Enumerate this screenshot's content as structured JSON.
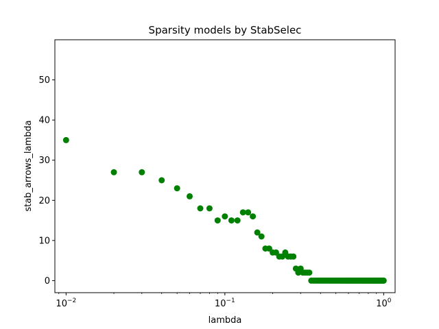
{
  "chart_data": {
    "type": "scatter",
    "title": "Sparsity models by StabSelec",
    "xlabel": "lambda",
    "ylabel": "stab_arrows_lambda",
    "x_scale": "log",
    "xlim": [
      0.0085,
      1.18
    ],
    "ylim": [
      -3,
      60
    ],
    "x_ticks": [
      {
        "value": 0.01,
        "base": "10",
        "exp": "−2"
      },
      {
        "value": 0.1,
        "base": "10",
        "exp": "−1"
      },
      {
        "value": 1,
        "base": "10",
        "exp": "0"
      }
    ],
    "y_ticks": [
      0,
      10,
      20,
      30,
      40,
      50
    ],
    "grid": false,
    "color": "#008000",
    "series": [
      {
        "x": [
          0.01,
          0.02,
          0.03,
          0.04,
          0.05,
          0.06,
          0.07,
          0.08,
          0.09,
          0.1,
          0.11,
          0.12,
          0.13,
          0.14,
          0.15,
          0.16,
          0.17,
          0.18,
          0.19,
          0.2,
          0.21,
          0.22,
          0.23,
          0.24,
          0.25,
          0.26,
          0.27,
          0.28,
          0.29,
          0.3,
          0.31,
          0.32,
          0.33,
          0.34,
          0.35,
          0.36,
          0.37,
          0.38,
          0.39,
          0.4,
          0.41,
          0.42,
          0.43,
          0.44,
          0.45,
          0.46,
          0.47,
          0.48,
          0.49,
          0.5,
          0.51,
          0.52,
          0.53,
          0.54,
          0.55,
          0.56,
          0.57,
          0.58,
          0.59,
          0.6,
          0.61,
          0.62,
          0.63,
          0.64,
          0.65,
          0.66,
          0.67,
          0.68,
          0.69,
          0.7,
          0.71,
          0.72,
          0.73,
          0.74,
          0.75,
          0.76,
          0.77,
          0.78,
          0.79,
          0.8,
          0.81,
          0.82,
          0.83,
          0.84,
          0.85,
          0.86,
          0.87,
          0.88,
          0.89,
          0.9,
          0.91,
          0.92,
          0.93,
          0.94,
          0.95,
          0.96,
          0.97,
          0.98,
          0.99,
          1.0
        ],
        "y": [
          35,
          27,
          27,
          25,
          23,
          21,
          18,
          18,
          15,
          16,
          15,
          15,
          17,
          17,
          16,
          12,
          11,
          8,
          8,
          7,
          7,
          6,
          6,
          7,
          6,
          6,
          6,
          3,
          2,
          3,
          2,
          2,
          2,
          2,
          0,
          0,
          0,
          0,
          0,
          0,
          0,
          0,
          0,
          0,
          0,
          0,
          0,
          0,
          0,
          0,
          0,
          0,
          0,
          0,
          0,
          0,
          0,
          0,
          0,
          0,
          0,
          0,
          0,
          0,
          0,
          0,
          0,
          0,
          0,
          0,
          0,
          0,
          0,
          0,
          0,
          0,
          0,
          0,
          0,
          0,
          0,
          0,
          0,
          0,
          0,
          0,
          0,
          0,
          0,
          0,
          0,
          0,
          0,
          0,
          0,
          0,
          0,
          0,
          0,
          0
        ]
      }
    ]
  }
}
